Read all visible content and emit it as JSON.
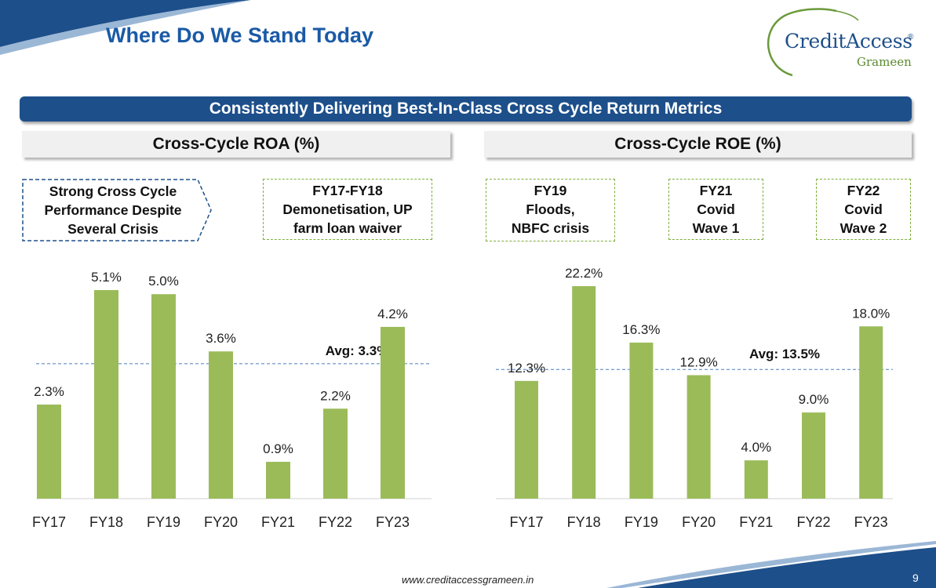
{
  "header": {
    "title": "Where Do We Stand Today"
  },
  "logo": {
    "main": "CreditAccess",
    "sub": "Grameen",
    "reg": "®"
  },
  "banner": {
    "text": "Consistently Delivering Best-In-Class Cross Cycle Return Metrics"
  },
  "sections": {
    "roa": "Cross-Cycle ROA (%)",
    "roe": "Cross-Cycle ROE (%)"
  },
  "notes": {
    "strong": [
      "Strong Cross Cycle",
      "Performance Despite",
      "Several Crisis"
    ],
    "demon": [
      "FY17-FY18",
      "Demonetisation, UP",
      "farm loan waiver"
    ],
    "fy19": [
      "FY19",
      "Floods,",
      "NBFC crisis"
    ],
    "fy21": [
      "FY21",
      "Covid",
      "Wave 1"
    ],
    "fy22": [
      "FY22",
      "Covid",
      "Wave 2"
    ]
  },
  "colors": {
    "bar": "#9bbb59",
    "brand_blue": "#1d4f8a",
    "avg_line": "#4a7ebb"
  },
  "chart_data": [
    {
      "type": "bar",
      "title": "Cross-Cycle ROA (%)",
      "categories": [
        "FY17",
        "FY18",
        "FY19",
        "FY20",
        "FY21",
        "FY22",
        "FY23"
      ],
      "values": [
        2.3,
        5.1,
        5.0,
        3.6,
        0.9,
        2.2,
        4.2
      ],
      "labels": [
        "2.3%",
        "5.1%",
        "5.0%",
        "3.6%",
        "0.9%",
        "2.2%",
        "4.2%"
      ],
      "average": 3.3,
      "average_label": "Avg: 3.3%",
      "ylim": [
        0,
        5.1
      ],
      "grid": false
    },
    {
      "type": "bar",
      "title": "Cross-Cycle ROE (%)",
      "categories": [
        "FY17",
        "FY18",
        "FY19",
        "FY20",
        "FY21",
        "FY22",
        "FY23"
      ],
      "values": [
        12.3,
        22.2,
        16.3,
        12.9,
        4.0,
        9.0,
        18.0
      ],
      "labels": [
        "12.3%",
        "22.2%",
        "16.3%",
        "12.9%",
        "4.0%",
        "9.0%",
        "18.0%"
      ],
      "average": 13.5,
      "average_label": "Avg: 13.5%",
      "ylim": [
        0,
        22.2
      ],
      "grid": false
    }
  ],
  "footer": {
    "url": "www.creditaccessgrameen.in",
    "page": "9"
  }
}
